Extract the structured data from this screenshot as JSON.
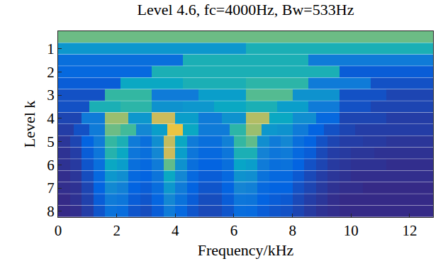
{
  "chart_data": {
    "type": "heatmap",
    "title": "Level 4.6, fc=4000Hz, Bw=533Hz",
    "xlabel": "Frequency/kHz",
    "ylabel": "Level k",
    "xlim": [
      0,
      12.8
    ],
    "xticks": [
      0,
      2,
      4,
      6,
      8,
      10,
      12
    ],
    "levels": [
      0,
      1,
      1.6,
      2,
      2.6,
      3,
      3.6,
      4,
      4.6,
      5,
      5.6,
      6,
      6.6,
      7,
      7.6,
      8
    ],
    "yticks": [
      1,
      2,
      3,
      4,
      5,
      6,
      7,
      8
    ],
    "z": [
      [
        0.72
      ],
      [
        0.42,
        0.55
      ],
      [
        0.25,
        0.55,
        0.3
      ],
      [
        0.22,
        0.55,
        0.55,
        0.18
      ],
      [
        0.18,
        0.5,
        0.55,
        0.6,
        0.3,
        0.15
      ],
      [
        0.15,
        0.62,
        0.3,
        0.45,
        0.68,
        0.4,
        0.15,
        0.12
      ],
      [
        0.15,
        0.55,
        0.6,
        0.4,
        0.42,
        0.5,
        0.55,
        0.45,
        0.3,
        0.15,
        0.12,
        0.12
      ],
      [
        0.12,
        0.3,
        0.8,
        0.42,
        0.9,
        0.45,
        0.3,
        0.4,
        0.85,
        0.5,
        0.38,
        0.22,
        0.12,
        0.12,
        0.1,
        0.1
      ],
      [
        0.1,
        0.15,
        0.3,
        0.72,
        0.65,
        0.35,
        0.45,
        1.0,
        0.5,
        0.3,
        0.3,
        0.6,
        0.8,
        0.42,
        0.4,
        0.3,
        0.2,
        0.15,
        0.12,
        0.1,
        0.1,
        0.1,
        0.1,
        0.1
      ],
      [
        0.08,
        0.12,
        0.2,
        0.3,
        0.62,
        0.55,
        0.3,
        0.25,
        0.38,
        0.88,
        0.5,
        0.3,
        0.25,
        0.25,
        0.32,
        0.62,
        0.7,
        0.38,
        0.3,
        0.35,
        0.25,
        0.2,
        0.15,
        0.12,
        0.1,
        0.1,
        0.09,
        0.09,
        0.08,
        0.08,
        0.08,
        0.08
      ],
      [
        0.07,
        0.1,
        0.18,
        0.28,
        0.58,
        0.5,
        0.28,
        0.25,
        0.35,
        0.9,
        0.45,
        0.28,
        0.22,
        0.22,
        0.28,
        0.55,
        0.55,
        0.33,
        0.28,
        0.3,
        0.22,
        0.18,
        0.13,
        0.1,
        0.09,
        0.08,
        0.08,
        0.07,
        0.07,
        0.07,
        0.07,
        0.07
      ],
      [
        0.07,
        0.09,
        0.16,
        0.25,
        0.5,
        0.45,
        0.25,
        0.22,
        0.3,
        0.7,
        0.4,
        0.25,
        0.2,
        0.2,
        0.25,
        0.48,
        0.45,
        0.3,
        0.25,
        0.26,
        0.2,
        0.15,
        0.12,
        0.09,
        0.08,
        0.07,
        0.07,
        0.07,
        0.06,
        0.06,
        0.06,
        0.06
      ],
      [
        0.06,
        0.08,
        0.14,
        0.22,
        0.42,
        0.38,
        0.22,
        0.2,
        0.27,
        0.5,
        0.35,
        0.22,
        0.18,
        0.18,
        0.22,
        0.4,
        0.38,
        0.26,
        0.22,
        0.22,
        0.17,
        0.13,
        0.1,
        0.08,
        0.07,
        0.06,
        0.06,
        0.06,
        0.06,
        0.06,
        0.06,
        0.06
      ],
      [
        0.06,
        0.07,
        0.12,
        0.2,
        0.36,
        0.32,
        0.2,
        0.18,
        0.24,
        0.42,
        0.3,
        0.2,
        0.16,
        0.16,
        0.2,
        0.34,
        0.32,
        0.22,
        0.2,
        0.2,
        0.15,
        0.12,
        0.09,
        0.07,
        0.06,
        0.06,
        0.05,
        0.05,
        0.05,
        0.05,
        0.05,
        0.05
      ],
      [
        0.05,
        0.07,
        0.11,
        0.18,
        0.3,
        0.28,
        0.18,
        0.16,
        0.21,
        0.35,
        0.26,
        0.18,
        0.14,
        0.14,
        0.18,
        0.28,
        0.27,
        0.2,
        0.18,
        0.17,
        0.13,
        0.1,
        0.08,
        0.06,
        0.05,
        0.05,
        0.05,
        0.05,
        0.05,
        0.05,
        0.05,
        0.05
      ],
      [
        0.05,
        0.06,
        0.1,
        0.16,
        0.26,
        0.24,
        0.16,
        0.14,
        0.18,
        0.3,
        0.22,
        0.16,
        0.13,
        0.13,
        0.16,
        0.24,
        0.23,
        0.18,
        0.16,
        0.15,
        0.12,
        0.09,
        0.07,
        0.06,
        0.05,
        0.05,
        0.05,
        0.05,
        0.05,
        0.05,
        0.05,
        0.05
      ]
    ]
  }
}
